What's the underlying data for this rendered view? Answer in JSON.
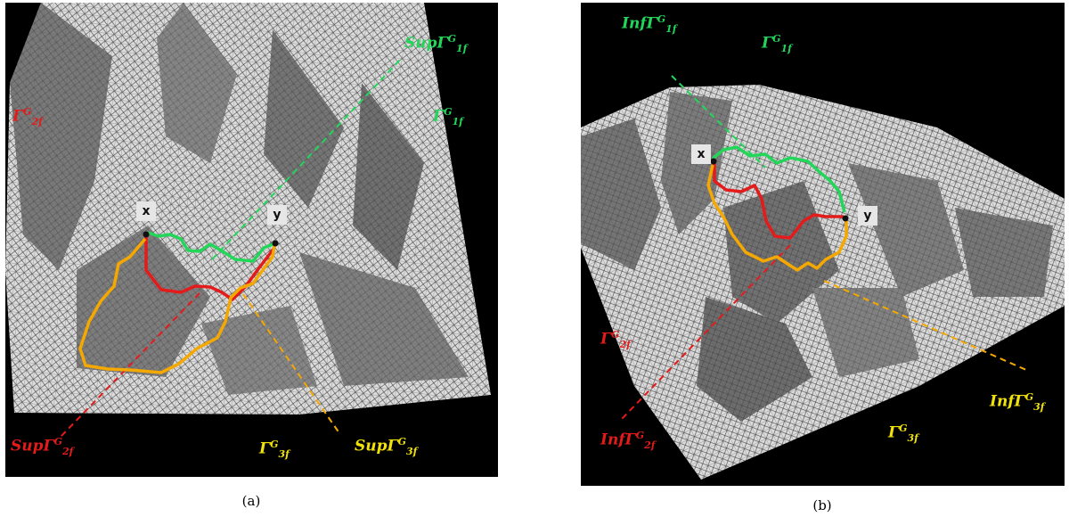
{
  "colors": {
    "green": "#22d65a",
    "red": "#e31b1b",
    "orange": "#f5a800",
    "yellow": "#f2e20c",
    "mesh": "#d9d9d9",
    "background": "#000000"
  },
  "panel_a": {
    "caption": "(a)",
    "markers": {
      "x": "x",
      "y": "y"
    },
    "labels": {
      "region_1": {
        "base": "Γ",
        "sub": "1f",
        "sup": "G"
      },
      "region_2": {
        "base": "Γ",
        "sub": "2f",
        "sup": "G"
      },
      "region_3": {
        "base": "Γ",
        "sub": "3f",
        "sup": "G"
      },
      "path_1": {
        "base": "SupΓ",
        "sub": "1f",
        "sup": "G"
      },
      "path_2": {
        "base": "SupΓ",
        "sub": "2f",
        "sup": "G"
      },
      "path_3": {
        "base": "SupΓ",
        "sub": "3f",
        "sup": "G"
      }
    }
  },
  "panel_b": {
    "caption": "(b)",
    "markers": {
      "x": "x",
      "y": "y"
    },
    "labels": {
      "region_1": {
        "base": "Γ",
        "sub": "1f",
        "sup": "G"
      },
      "region_2": {
        "base": "Γ",
        "sub": "2f",
        "sup": "G"
      },
      "region_3": {
        "base": "Γ",
        "sub": "3f",
        "sup": "G"
      },
      "path_1": {
        "base": "InfΓ",
        "sub": "1f",
        "sup": "G"
      },
      "path_2": {
        "base": "InfΓ",
        "sub": "2f",
        "sup": "G"
      },
      "path_3": {
        "base": "InfΓ",
        "sub": "3f",
        "sup": "G"
      }
    }
  }
}
